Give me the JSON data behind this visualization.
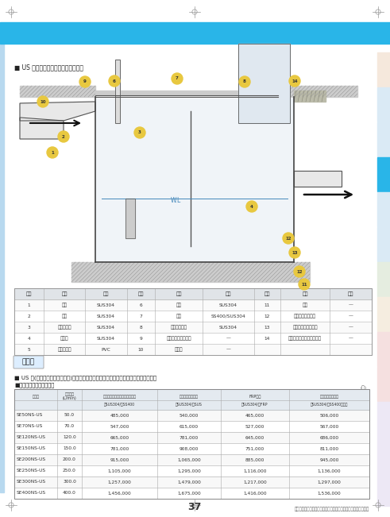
{
  "page_bg": "#ffffff",
  "header_bar_color": "#29b5e8",
  "title_diagram": "■ US 型グリーストラップ標準取付図",
  "price_section_title": "■ US 型(地中埋設・側溝流入型)グリーストラップ・ソケットタイプ　材質：ステンレス",
  "price_subtitle": "■各種標準仕様セット価格",
  "price_unit": "(円)",
  "kakaku_hyo_label": "価格表",
  "component_table_headers": [
    "部番",
    "品名",
    "材質",
    "部番",
    "品名",
    "材質",
    "部番",
    "品名",
    "材質"
  ],
  "component_rows": [
    [
      "1",
      "本体",
      "SUS304",
      "6",
      "盗棘",
      "SUS304",
      "11",
      "砂石",
      "—"
    ],
    [
      "2",
      "受流",
      "SUS304",
      "7",
      "ふた",
      "SS400/SUS304",
      "12",
      "底面コンクリート",
      "—"
    ],
    [
      "3",
      "スライド板",
      "SUS304",
      "8",
      "固定用ビース",
      "SUS304",
      "13",
      "側巻きコンクリート",
      "—"
    ],
    [
      "4",
      "流出管",
      "SUS304",
      "9",
      "溝準用グレーチング",
      "—",
      "14",
      "エプロン（コンクリート）",
      "—"
    ],
    [
      "5",
      "トラップ管",
      "PVC",
      "10",
      "流入路",
      "—",
      "",
      "",
      ""
    ]
  ],
  "price_rows": [
    [
      "SE50NS-US",
      "50.0",
      "485,000",
      "540,000",
      "465,000",
      "506,000"
    ],
    [
      "SE70NS-US",
      "70.0",
      "547,000",
      "615,000",
      "527,000",
      "567,000"
    ],
    [
      "SE120NS-US",
      "120.0",
      "665,000",
      "781,000",
      "645,000",
      "686,000"
    ],
    [
      "SE150NS-US",
      "150.0",
      "781,000",
      "908,000",
      "751,000",
      "811,000"
    ],
    [
      "SE200NS-US",
      "200.0",
      "915,000",
      "1,065,000",
      "885,000",
      "945,000"
    ],
    [
      "SE250NS-US",
      "250.0",
      "1,105,000",
      "1,295,000",
      "1,116,000",
      "1,136,000"
    ],
    [
      "SE300NS-US",
      "300.0",
      "1,257,000",
      "1,479,000",
      "1,217,000",
      "1,297,000"
    ],
    [
      "SE400NS-US",
      "400.0",
      "1,456,000",
      "1,675,000",
      "1,416,000",
      "1,536,000"
    ]
  ],
  "price_note": "記載されている価格には、送料・消費税は含まれておりません。",
  "page_number": "37",
  "right_tab_colors": [
    "#f5e8dc",
    "#daeaf5",
    "#daeaf5",
    "#29b5e8",
    "#daeaf5",
    "#daeaf5",
    "#e8f0e8",
    "#f5e8e0",
    "#f5e0e0",
    "#f5e0e0",
    "#ede8f5",
    "#ede8f5",
    "#ede8f5"
  ],
  "ph_line1": [
    "型　式",
    "流量入力\n(L/min)",
    "鉄筋製品付きコンクリート製付",
    "ステンレス製蛙付",
    "FRP裕付",
    "錐型メッシュ蛙付"
  ],
  "ph_line2": [
    "",
    "",
    "枠SUS304/蟓SS400",
    "枠SUS304/蟓SUS",
    "枠SUS304/蟓FRP",
    "有SUS304/蟓SS400陥込み"
  ]
}
